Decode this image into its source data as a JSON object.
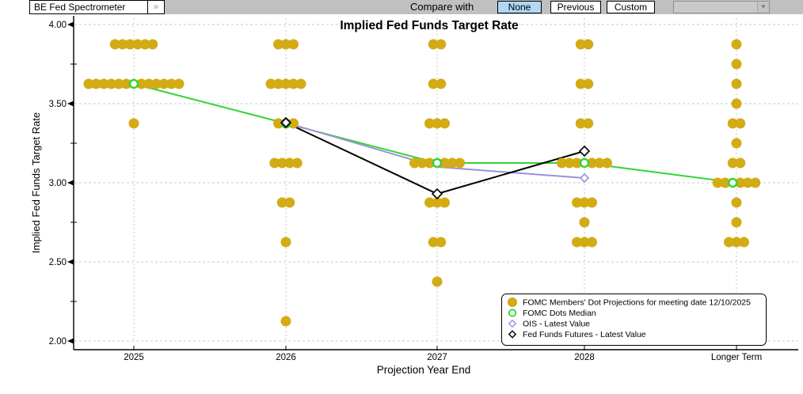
{
  "toolbar": {
    "chart_selector_value": "BE Fed Spectrometer",
    "expand_button_label": "»",
    "compare_label": "Compare with",
    "compare_options": [
      "None",
      "Previous",
      "Custom"
    ],
    "compare_selected": "None",
    "custom_dropdown_value": "",
    "dropdown_arrow": "▼"
  },
  "colors": {
    "toolbar_bg": "#c0c0c0",
    "selected_button_bg": "#b0d7f5",
    "dot": "#d3ab15",
    "median_green": "#33d433",
    "ois_purple": "#9e90d8",
    "futures_black": "#000000",
    "grid": "#c9c9c9",
    "axis": "#000000"
  },
  "chart_data": {
    "type": "scatter",
    "title": "Implied Fed Funds Target Rate",
    "xlabel": "Projection Year End",
    "ylabel": "Implied Fed Funds Target Rate",
    "ylim": [
      2.0,
      4.0
    ],
    "grid": "dashed, horizontal at 0.50 steps and vertical at each category",
    "legend_position": "lower right inside plot",
    "ytick_labels": [
      "4.00",
      "3.50",
      "3.00",
      "2.50",
      "2.00"
    ],
    "yticks_major": [
      4.0,
      3.5,
      3.0,
      2.5,
      2.0
    ],
    "yticks_minor": [
      3.75,
      3.25,
      2.75,
      2.25
    ],
    "categories": [
      "2025",
      "2026",
      "2027",
      "2028",
      "Longer Term"
    ],
    "dots": [
      {
        "category": "2025",
        "rows": [
          {
            "rate": 3.875,
            "count": 6
          },
          {
            "rate": 3.625,
            "count": 12
          },
          {
            "rate": 3.375,
            "count": 1
          }
        ]
      },
      {
        "category": "2026",
        "rows": [
          {
            "rate": 3.875,
            "count": 3
          },
          {
            "rate": 3.625,
            "count": 5
          },
          {
            "rate": 3.375,
            "count": 3
          },
          {
            "rate": 3.125,
            "count": 4
          },
          {
            "rate": 2.875,
            "count": 2
          },
          {
            "rate": 2.625,
            "count": 1
          },
          {
            "rate": 2.125,
            "count": 1
          }
        ]
      },
      {
        "category": "2027",
        "rows": [
          {
            "rate": 3.875,
            "count": 2
          },
          {
            "rate": 3.625,
            "count": 2
          },
          {
            "rate": 3.375,
            "count": 3
          },
          {
            "rate": 3.125,
            "count": 6
          },
          {
            "rate": 2.875,
            "count": 3
          },
          {
            "rate": 2.625,
            "count": 2
          },
          {
            "rate": 2.375,
            "count": 1
          }
        ]
      },
      {
        "category": "2028",
        "rows": [
          {
            "rate": 3.875,
            "count": 2
          },
          {
            "rate": 3.625,
            "count": 2
          },
          {
            "rate": 3.375,
            "count": 2
          },
          {
            "rate": 3.125,
            "count": 6
          },
          {
            "rate": 2.875,
            "count": 3
          },
          {
            "rate": 2.75,
            "count": 1
          },
          {
            "rate": 2.625,
            "count": 3
          }
        ]
      },
      {
        "category": "Longer Term",
        "rows": [
          {
            "rate": 3.875,
            "count": 1
          },
          {
            "rate": 3.75,
            "count": 1
          },
          {
            "rate": 3.625,
            "count": 1
          },
          {
            "rate": 3.5,
            "count": 1
          },
          {
            "rate": 3.375,
            "count": 2
          },
          {
            "rate": 3.25,
            "count": 1
          },
          {
            "rate": 3.125,
            "count": 2
          },
          {
            "rate": 3.0,
            "count": 5
          },
          {
            "rate": 2.875,
            "count": 1
          },
          {
            "rate": 2.75,
            "count": 1
          },
          {
            "rate": 2.625,
            "count": 3
          }
        ]
      }
    ],
    "median_marker_inserted": {
      "2025": true,
      "2026": false,
      "2027": true,
      "2028": true,
      "Longer Term": true
    },
    "series": [
      {
        "name": "FOMC Dots Median",
        "color": "#33d433",
        "marker": "open-circle",
        "points": [
          [
            "2025",
            3.625
          ],
          [
            "2026",
            3.375
          ],
          [
            "2027",
            3.125
          ],
          [
            "2028",
            3.125
          ],
          [
            "Longer Term",
            3.0
          ]
        ]
      },
      {
        "name": "OIS - Latest Value",
        "color": "#9e90d8",
        "marker": "open-diamond",
        "points": [
          [
            "2026",
            3.38
          ],
          [
            "2027",
            3.1
          ],
          [
            "2028",
            3.03
          ]
        ]
      },
      {
        "name": "Fed Funds Futures - Latest Value",
        "color": "#000000",
        "marker": "open-diamond",
        "points": [
          [
            "2026",
            3.38
          ],
          [
            "2027",
            2.93
          ],
          [
            "2028",
            3.2
          ]
        ]
      }
    ],
    "legend": [
      {
        "marker": "filled-circle",
        "color": "#d3ab15",
        "label": "FOMC Members' Dot Projections for meeting date 12/10/2025"
      },
      {
        "marker": "open-circle",
        "color": "#33d433",
        "label": "FOMC Dots Median"
      },
      {
        "marker": "open-diamond",
        "color": "#9e90d8",
        "label": "OIS - Latest Value"
      },
      {
        "marker": "open-diamond",
        "color": "#000000",
        "label": "Fed Funds Futures - Latest Value"
      }
    ]
  }
}
